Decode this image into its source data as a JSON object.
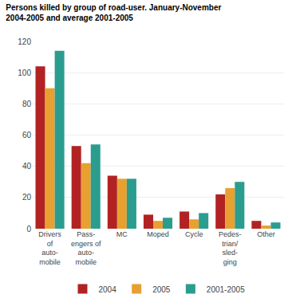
{
  "chart_data": {
    "type": "bar",
    "title": "Persons killed by group of road-user. January-November",
    "subtitle": "2004-2005 and average 2001-2005",
    "categories": [
      "Drivers\nof\nauto-\nmobile",
      "Pass-\nengers of\nauto-\nmobile",
      "MC",
      "Moped",
      "Cycle",
      "Pedes-\ntrian/\nsled-\nging",
      "Other"
    ],
    "series": [
      {
        "name": "2004",
        "color": "#b22222",
        "values": [
          104,
          53,
          34,
          9,
          11,
          22,
          5
        ]
      },
      {
        "name": "2005",
        "color": "#e8a030",
        "values": [
          90,
          42,
          32,
          5,
          6,
          26,
          2
        ]
      },
      {
        "name": "2001-2005",
        "color": "#2a9d8f",
        "values": [
          114,
          54,
          32,
          7,
          10,
          30,
          4
        ]
      }
    ],
    "ylim": [
      0,
      120
    ],
    "yticks": [
      0,
      20,
      40,
      60,
      80,
      100,
      120
    ],
    "grid": true,
    "legend": "bottom"
  }
}
